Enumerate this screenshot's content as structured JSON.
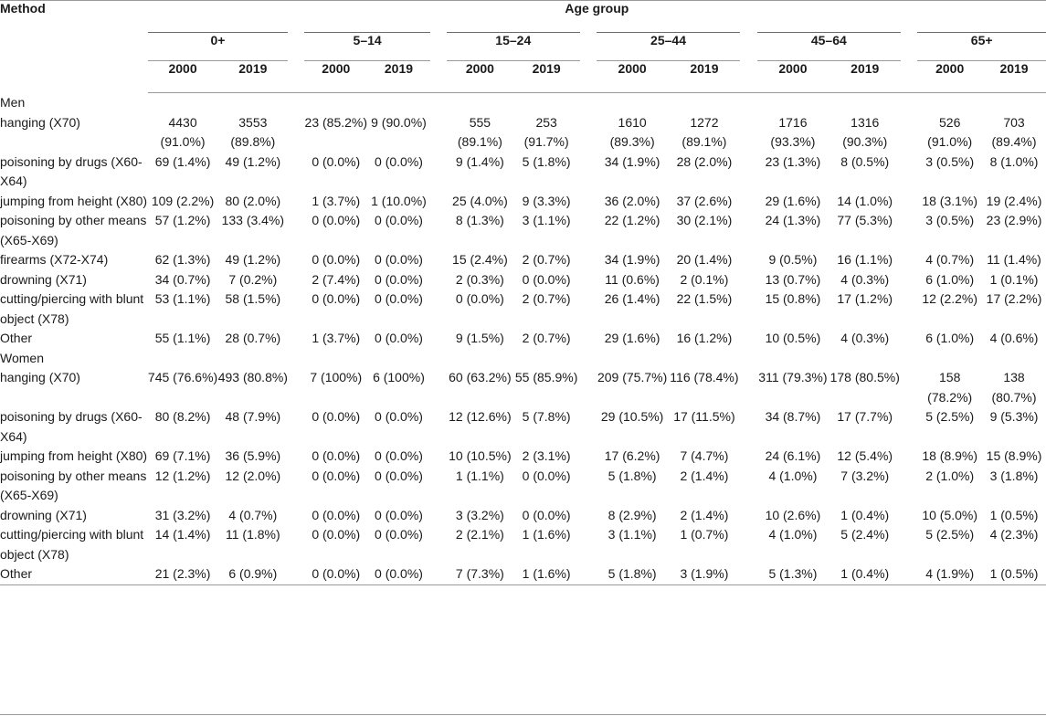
{
  "header": {
    "method_label": "Method",
    "age_group_label": "Age group",
    "groups": [
      "0+",
      "5–14",
      "15–24",
      "25–44",
      "45–64",
      "65+"
    ],
    "years": [
      "2000",
      "2019"
    ]
  },
  "sections": [
    {
      "title": "Men",
      "rows": [
        {
          "method": "hanging (X70)",
          "values": [
            "4430 (91.0%)",
            "3553 (89.8%)",
            "23 (85.2%)",
            "9 (90.0%)",
            "555 (89.1%)",
            "253 (91.7%)",
            "1610 (89.3%)",
            "1272 (89.1%)",
            "1716 (93.3%)",
            "1316 (90.3%)",
            "526 (91.0%)",
            "703 (89.4%)"
          ]
        },
        {
          "method": "poisoning by drugs (X60-X64)",
          "values": [
            "69 (1.4%)",
            "49 (1.2%)",
            "0 (0.0%)",
            "0 (0.0%)",
            "9 (1.4%)",
            "5 (1.8%)",
            "34 (1.9%)",
            "28 (2.0%)",
            "23 (1.3%)",
            "8 (0.5%)",
            "3 (0.5%)",
            "8 (1.0%)"
          ]
        },
        {
          "method": "jumping from height (X80)",
          "values": [
            "109 (2.2%)",
            "80 (2.0%)",
            "1 (3.7%)",
            "1 (10.0%)",
            "25 (4.0%)",
            "9 (3.3%)",
            "36 (2.0%)",
            "37 (2.6%)",
            "29 (1.6%)",
            "14 (1.0%)",
            "18 (3.1%)",
            "19 (2.4%)"
          ]
        },
        {
          "method": "poisoning by other means (X65-X69)",
          "values": [
            "57 (1.2%)",
            "133 (3.4%)",
            "0 (0.0%)",
            "0 (0.0%)",
            "8 (1.3%)",
            "3 (1.1%)",
            "22 (1.2%)",
            "30 (2.1%)",
            "24 (1.3%)",
            "77 (5.3%)",
            "3 (0.5%)",
            "23 (2.9%)"
          ]
        },
        {
          "method": "firearms (X72-X74)",
          "values": [
            "62 (1.3%)",
            "49 (1.2%)",
            "0 (0.0%)",
            "0 (0.0%)",
            "15 (2.4%)",
            "2 (0.7%)",
            "34 (1.9%)",
            "20 (1.4%)",
            "9 (0.5%)",
            "16 (1.1%)",
            "4 (0.7%)",
            "11 (1.4%)"
          ]
        },
        {
          "method": "drowning (X71)",
          "values": [
            "34 (0.7%)",
            "7 (0.2%)",
            "2 (7.4%)",
            "0 (0.0%)",
            "2 (0.3%)",
            "0 (0.0%)",
            "11 (0.6%)",
            "2 (0.1%)",
            "13 (0.7%)",
            "4 (0.3%)",
            "6 (1.0%)",
            "1 (0.1%)"
          ]
        },
        {
          "method": "cutting/piercing with blunt object (X78)",
          "values": [
            "53 (1.1%)",
            "58 (1.5%)",
            "0 (0.0%)",
            "0 (0.0%)",
            "0 (0.0%)",
            "2 (0.7%)",
            "26 (1.4%)",
            "22 (1.5%)",
            "15 (0.8%)",
            "17 (1.2%)",
            "12 (2.2%)",
            "17 (2.2%)"
          ]
        },
        {
          "method": "Other",
          "values": [
            "55 (1.1%)",
            "28 (0.7%)",
            "1 (3.7%)",
            "0 (0.0%)",
            "9 (1.5%)",
            "2 (0.7%)",
            "29 (1.6%)",
            "16 (1.2%)",
            "10 (0.5%)",
            "4 (0.3%)",
            "6 (1.0%)",
            "4 (0.6%)"
          ]
        }
      ]
    },
    {
      "title": "Women",
      "rows": [
        {
          "method": "hanging (X70)",
          "values": [
            "745 (76.6%)",
            "493 (80.8%)",
            "7 (100%)",
            "6 (100%)",
            "60 (63.2%)",
            "55 (85.9%)",
            "209 (75.7%)",
            "116 (78.4%)",
            "311 (79.3%)",
            "178 (80.5%)",
            "158 (78.2%)",
            "138 (80.7%)"
          ]
        },
        {
          "method": "poisoning by drugs (X60-X64)",
          "values": [
            "80 (8.2%)",
            "48 (7.9%)",
            "0 (0.0%)",
            "0 (0.0%)",
            "12 (12.6%)",
            "5 (7.8%)",
            "29 (10.5%)",
            "17 (11.5%)",
            "34 (8.7%)",
            "17 (7.7%)",
            "5 (2.5%)",
            "9 (5.3%)"
          ]
        },
        {
          "method": "jumping from height (X80)",
          "values": [
            "69 (7.1%)",
            "36 (5.9%)",
            "0 (0.0%)",
            "0 (0.0%)",
            "10 (10.5%)",
            "2 (3.1%)",
            "17 (6.2%)",
            "7 (4.7%)",
            "24 (6.1%)",
            "12 (5.4%)",
            "18 (8.9%)",
            "15 (8.9%)"
          ]
        },
        {
          "method": "poisoning by other means (X65-X69)",
          "values": [
            "12 (1.2%)",
            "12 (2.0%)",
            "0 (0.0%)",
            "0 (0.0%)",
            "1 (1.1%)",
            "0 (0.0%)",
            "5 (1.8%)",
            "2 (1.4%)",
            "4 (1.0%)",
            "7 (3.2%)",
            "2 (1.0%)",
            "3 (1.8%)"
          ]
        },
        {
          "method": "drowning (X71)",
          "values": [
            "31 (3.2%)",
            "4 (0.7%)",
            "0 (0.0%)",
            "0 (0.0%)",
            "3 (3.2%)",
            "0 (0.0%)",
            "8 (2.9%)",
            "2 (1.4%)",
            "10 (2.6%)",
            "1 (0.4%)",
            "10 (5.0%)",
            "1 (0.5%)"
          ]
        },
        {
          "method": "cutting/piercing with blunt object (X78)",
          "values": [
            "14 (1.4%)",
            "11 (1.8%)",
            "0 (0.0%)",
            "0 (0.0%)",
            "2 (2.1%)",
            "1 (1.6%)",
            "3 (1.1%)",
            "1 (0.7%)",
            "4 (1.0%)",
            "5 (2.4%)",
            "5 (2.5%)",
            "4 (2.3%)"
          ]
        },
        {
          "method": "Other",
          "values": [
            "21 (2.3%)",
            "6 (0.9%)",
            "0 (0.0%)",
            "0 (0.0%)",
            "7 (7.3%)",
            "1 (1.6%)",
            "5 (1.8%)",
            "3 (1.9%)",
            "5 (1.3%)",
            "1 (0.4%)",
            "4 (1.9%)",
            "1 (0.5%)"
          ]
        }
      ]
    }
  ]
}
